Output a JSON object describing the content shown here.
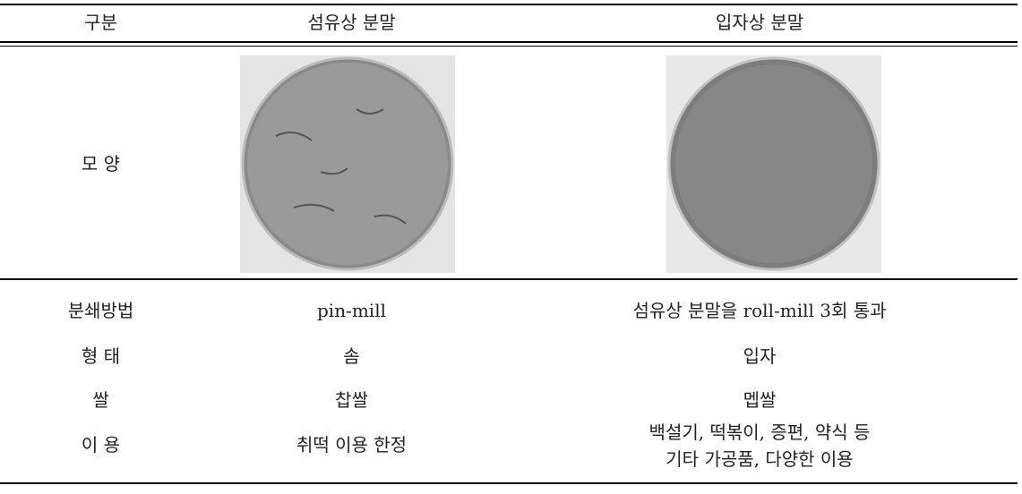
{
  "table": {
    "header": [
      "구분",
      "섬유상 분말",
      "입자상 분말"
    ],
    "image_row_label": "모 양",
    "rows": [
      [
        "분쇄방법",
        "pin-mill",
        "섬유상 분말을 roll-mill 3회 통과"
      ],
      [
        "형 태",
        "솜",
        "입자"
      ],
      [
        "쌀",
        "찹쌀",
        "멥쌀"
      ],
      [
        "이 용",
        "취떡 이용 한정",
        [
          "백설기, 떡볶이, 증편, 약식 등",
          "기타 가공품, 다양한 이용"
        ]
      ]
    ]
  }
}
